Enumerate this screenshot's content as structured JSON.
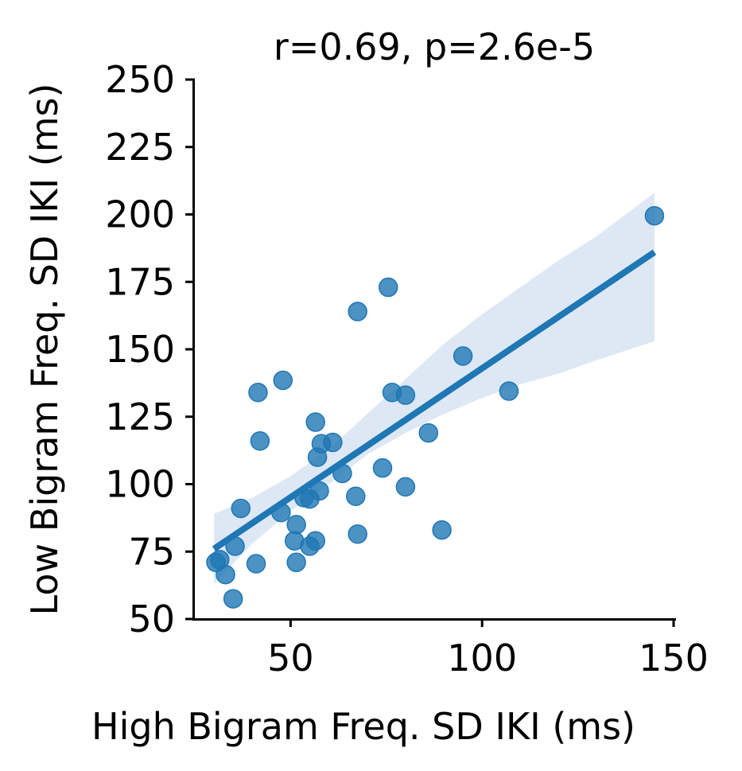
{
  "chart_data": {
    "type": "scatter",
    "title": "r=0.69, p=2.6e-5",
    "xlabel": "High Bigram Freq. SD IKI (ms)",
    "ylabel": "Low Bigram Freq. SD IKI (ms)",
    "xlim": [
      25,
      150
    ],
    "ylim": [
      50,
      250
    ],
    "xticks": [
      50,
      100,
      150
    ],
    "yticks": [
      50,
      75,
      100,
      125,
      150,
      175,
      200,
      225,
      250
    ],
    "grid": false,
    "legend": "none",
    "colors": {
      "points": "#1f77b4",
      "regression_line": "#1f77b4",
      "confidence_band": "#c6d9ec"
    },
    "points": [
      {
        "x": 145.0,
        "y": 199.5
      },
      {
        "x": 95.0,
        "y": 147.5
      },
      {
        "x": 107.0,
        "y": 134.5
      },
      {
        "x": 75.5,
        "y": 173.0
      },
      {
        "x": 67.5,
        "y": 164.0
      },
      {
        "x": 76.5,
        "y": 134.0
      },
      {
        "x": 80.0,
        "y": 133.0
      },
      {
        "x": 86.0,
        "y": 119.0
      },
      {
        "x": 48.0,
        "y": 138.5
      },
      {
        "x": 41.5,
        "y": 134.0
      },
      {
        "x": 42.0,
        "y": 116.0
      },
      {
        "x": 56.5,
        "y": 123.0
      },
      {
        "x": 58.0,
        "y": 115.0
      },
      {
        "x": 61.0,
        "y": 115.5
      },
      {
        "x": 57.0,
        "y": 110.0
      },
      {
        "x": 74.0,
        "y": 106.0
      },
      {
        "x": 63.5,
        "y": 104.0
      },
      {
        "x": 80.0,
        "y": 99.0
      },
      {
        "x": 57.5,
        "y": 97.5
      },
      {
        "x": 53.5,
        "y": 95.0
      },
      {
        "x": 55.0,
        "y": 94.5
      },
      {
        "x": 67.0,
        "y": 95.5
      },
      {
        "x": 37.0,
        "y": 91.0
      },
      {
        "x": 47.5,
        "y": 89.5
      },
      {
        "x": 51.5,
        "y": 85.0
      },
      {
        "x": 89.5,
        "y": 83.0
      },
      {
        "x": 67.5,
        "y": 81.5
      },
      {
        "x": 51.0,
        "y": 79.0
      },
      {
        "x": 56.5,
        "y": 79.0
      },
      {
        "x": 55.0,
        "y": 77.0
      },
      {
        "x": 35.5,
        "y": 77.0
      },
      {
        "x": 31.5,
        "y": 72.0
      },
      {
        "x": 30.5,
        "y": 71.0
      },
      {
        "x": 41.0,
        "y": 70.5
      },
      {
        "x": 51.5,
        "y": 71.0
      },
      {
        "x": 33.0,
        "y": 66.5
      },
      {
        "x": 35.0,
        "y": 57.5
      }
    ],
    "regression": {
      "x": [
        30,
        145
      ],
      "y": [
        76,
        186
      ]
    },
    "confidence_band": {
      "x": [
        30,
        40,
        50,
        60,
        70,
        80,
        90,
        100,
        110,
        120,
        130,
        145
      ],
      "lower": [
        63,
        78,
        90,
        100,
        111,
        119,
        126,
        132,
        137,
        141,
        146,
        153
      ],
      "upper": [
        89,
        95,
        103,
        113,
        126,
        139,
        152,
        163,
        173,
        183,
        192,
        208
      ]
    }
  }
}
